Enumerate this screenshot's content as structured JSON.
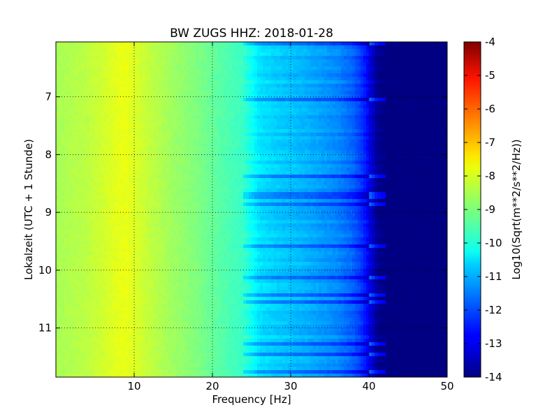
{
  "chart_data": {
    "type": "heatmap",
    "title": "BW ZUGS HHZ: 2018-01-28",
    "xlabel": "Frequency [Hz]",
    "ylabel": "Lokalzeit (UTC + 1 Stunde)",
    "colorbar_label": "Log10(Sqrt(m**2/s**2/Hz))",
    "colormap": "jet",
    "xlim": [
      0,
      50
    ],
    "ylim": [
      6.05,
      11.85
    ],
    "y_inverted": true,
    "x_ticks": [
      "10",
      "20",
      "30",
      "40",
      "50"
    ],
    "x_tick_values": [
      10,
      20,
      30,
      40,
      50
    ],
    "y_ticks": [
      "7",
      "8",
      "9",
      "10",
      "11"
    ],
    "y_tick_values": [
      7,
      8,
      9,
      10,
      11
    ],
    "colorbar_range": [
      -14,
      -4
    ],
    "colorbar_ticks": [
      "-4",
      "-5",
      "-6",
      "-7",
      "-8",
      "-9",
      "-10",
      "-11",
      "-12",
      "-13",
      "-14"
    ],
    "colorbar_tick_values": [
      -4,
      -5,
      -6,
      -7,
      -8,
      -9,
      -10,
      -11,
      -12,
      -13,
      -14
    ],
    "grid": true,
    "spectrum_profile": {
      "frequency_hz": [
        0,
        2,
        4,
        6,
        8,
        9,
        10,
        12,
        15,
        18,
        20,
        22,
        24,
        25,
        26,
        28,
        30,
        32,
        34,
        36,
        38,
        39,
        40,
        41,
        42,
        45,
        50
      ],
      "log10_amplitude": [
        -8.6,
        -8.5,
        -8.4,
        -8.2,
        -8.0,
        -7.95,
        -8.1,
        -8.35,
        -8.7,
        -9.0,
        -9.25,
        -9.5,
        -9.7,
        -10.1,
        -10.5,
        -10.7,
        -10.85,
        -11.0,
        -11.2,
        -11.4,
        -11.8,
        -12.2,
        -12.8,
        -13.8,
        -14.0,
        -14.0,
        -14.0
      ]
    }
  }
}
